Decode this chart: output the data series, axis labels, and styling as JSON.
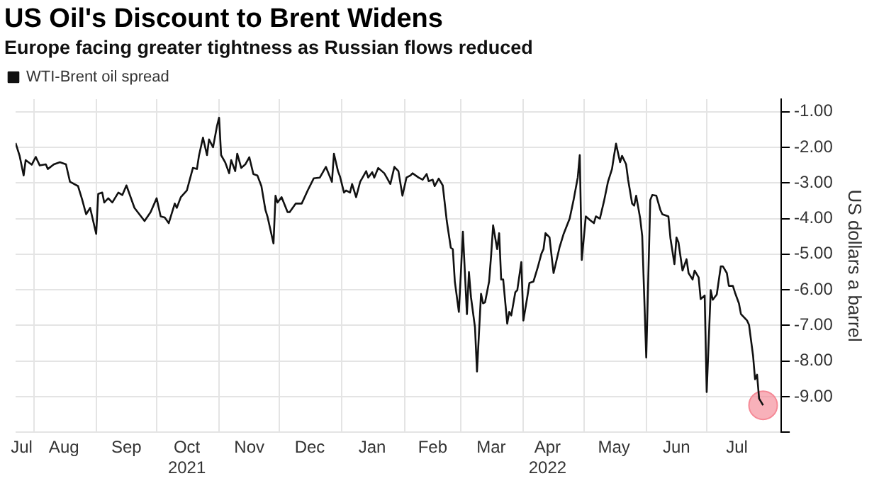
{
  "chart_data": {
    "type": "line",
    "title": "US Oil's Discount to Brent Widens",
    "subtitle": "Europe facing greater tightness as Russian flows reduced",
    "ylabel": "US dollars a barrel",
    "series": [
      {
        "name": "WTI-Brent oil spread",
        "color": "#111111",
        "x": [
          "2021-07-23",
          "2021-07-25",
          "2021-07-27",
          "2021-07-28",
          "2021-07-31",
          "2021-08-02",
          "2021-08-04",
          "2021-08-07",
          "2021-08-08",
          "2021-08-11",
          "2021-08-14",
          "2021-08-17",
          "2021-08-19",
          "2021-08-23",
          "2021-08-25",
          "2021-08-27",
          "2021-08-29",
          "2021-09-01",
          "2021-09-02",
          "2021-09-04",
          "2021-09-05",
          "2021-09-07",
          "2021-09-09",
          "2021-09-12",
          "2021-09-14",
          "2021-09-16",
          "2021-09-20",
          "2021-09-25",
          "2021-09-28",
          "2021-10-01",
          "2021-10-03",
          "2021-10-05",
          "2021-10-07",
          "2021-10-10",
          "2021-10-11",
          "2021-10-13",
          "2021-10-16",
          "2021-10-19",
          "2021-10-21",
          "2021-10-22",
          "2021-10-24",
          "2021-10-26",
          "2021-10-27",
          "2021-10-29",
          "2021-10-31",
          "2021-11-01",
          "2021-11-02",
          "2021-11-04",
          "2021-11-06",
          "2021-11-07",
          "2021-11-09",
          "2021-11-10",
          "2021-11-12",
          "2021-11-14",
          "2021-11-16",
          "2021-11-18",
          "2021-11-20",
          "2021-11-22",
          "2021-11-24",
          "2021-11-25",
          "2021-11-28",
          "2021-11-29",
          "2021-11-30",
          "2021-12-02",
          "2021-12-05",
          "2021-12-06",
          "2021-12-09",
          "2021-12-12",
          "2021-12-15",
          "2021-12-18",
          "2021-12-21",
          "2021-12-24",
          "2021-12-27",
          "2021-12-28",
          "2021-12-30",
          "2021-12-31",
          "2022-01-02",
          "2022-01-03",
          "2022-01-05",
          "2022-01-06",
          "2022-01-08",
          "2022-01-10",
          "2022-01-13",
          "2022-01-14",
          "2022-01-16",
          "2022-01-17",
          "2022-01-19",
          "2022-01-22",
          "2022-01-25",
          "2022-01-27",
          "2022-01-29",
          "2022-01-31",
          "2022-02-02",
          "2022-02-04",
          "2022-02-05",
          "2022-02-08",
          "2022-02-10",
          "2022-02-12",
          "2022-02-13",
          "2022-02-15",
          "2022-02-16",
          "2022-02-18",
          "2022-02-20",
          "2022-02-22",
          "2022-02-24",
          "2022-02-25",
          "2022-02-26",
          "2022-02-28",
          "2022-03-01",
          "2022-03-02",
          "2022-03-04",
          "2022-03-05",
          "2022-03-06",
          "2022-03-08",
          "2022-03-09",
          "2022-03-11",
          "2022-03-12",
          "2022-03-13",
          "2022-03-15",
          "2022-03-16",
          "2022-03-17",
          "2022-03-19",
          "2022-03-20",
          "2022-03-21",
          "2022-03-22",
          "2022-03-24",
          "2022-03-25",
          "2022-03-26",
          "2022-03-28",
          "2022-03-29",
          "2022-03-31",
          "2022-04-01",
          "2022-04-03",
          "2022-04-04",
          "2022-04-06",
          "2022-04-08",
          "2022-04-10",
          "2022-04-11",
          "2022-04-12",
          "2022-04-14",
          "2022-04-15",
          "2022-04-16",
          "2022-04-19",
          "2022-04-21",
          "2022-04-24",
          "2022-04-26",
          "2022-04-28",
          "2022-04-29",
          "2022-04-30",
          "2022-05-02",
          "2022-05-04",
          "2022-05-06",
          "2022-05-07",
          "2022-05-09",
          "2022-05-11",
          "2022-05-13",
          "2022-05-15",
          "2022-05-16",
          "2022-05-17",
          "2022-05-19",
          "2022-05-20",
          "2022-05-22",
          "2022-05-23",
          "2022-05-25",
          "2022-05-26",
          "2022-05-27",
          "2022-05-29",
          "2022-05-30",
          "2022-06-01",
          "2022-06-03",
          "2022-06-04",
          "2022-06-06",
          "2022-06-08",
          "2022-06-09",
          "2022-06-12",
          "2022-06-13",
          "2022-06-15",
          "2022-06-16",
          "2022-06-17",
          "2022-06-19",
          "2022-06-21",
          "2022-06-22",
          "2022-06-24",
          "2022-06-25",
          "2022-06-27",
          "2022-06-28",
          "2022-06-30",
          "2022-07-01",
          "2022-07-03",
          "2022-07-04",
          "2022-07-06",
          "2022-07-08",
          "2022-07-09",
          "2022-07-11",
          "2022-07-12",
          "2022-07-14",
          "2022-07-15",
          "2022-07-17",
          "2022-07-18",
          "2022-07-21",
          "2022-07-22",
          "2022-07-24",
          "2022-07-25",
          "2022-07-26",
          "2022-07-27",
          "2022-07-29"
        ],
        "values": [
          -1.88,
          -2.24,
          -2.79,
          -2.36,
          -2.49,
          -2.27,
          -2.51,
          -2.48,
          -2.61,
          -2.48,
          -2.42,
          -2.48,
          -2.97,
          -3.09,
          -3.46,
          -3.88,
          -3.7,
          -4.43,
          -3.31,
          -3.27,
          -3.55,
          -3.43,
          -3.55,
          -3.27,
          -3.34,
          -3.07,
          -3.7,
          -4.07,
          -3.82,
          -3.43,
          -3.94,
          -3.97,
          -4.13,
          -3.58,
          -3.7,
          -3.4,
          -3.21,
          -2.58,
          -2.61,
          -2.24,
          -1.73,
          -2.22,
          -1.78,
          -2.0,
          -1.39,
          -1.17,
          -2.22,
          -2.42,
          -2.73,
          -2.36,
          -2.67,
          -2.18,
          -2.58,
          -2.48,
          -2.28,
          -2.75,
          -2.79,
          -3.09,
          -3.76,
          -3.94,
          -4.7,
          -3.36,
          -3.55,
          -3.4,
          -3.82,
          -3.82,
          -3.58,
          -3.58,
          -3.21,
          -2.87,
          -2.85,
          -2.55,
          -2.97,
          -2.18,
          -2.67,
          -2.82,
          -3.27,
          -3.21,
          -3.27,
          -3.03,
          -3.4,
          -2.97,
          -2.67,
          -2.85,
          -2.7,
          -2.85,
          -2.58,
          -2.73,
          -3.03,
          -2.55,
          -2.67,
          -3.36,
          -2.85,
          -2.79,
          -2.73,
          -2.85,
          -2.91,
          -2.75,
          -2.95,
          -2.91,
          -3.09,
          -2.88,
          -3.07,
          -4.07,
          -4.82,
          -4.86,
          -5.77,
          -6.62,
          -5.53,
          -4.37,
          -6.68,
          -5.5,
          -6.2,
          -7.05,
          -8.29,
          -6.11,
          -6.38,
          -6.35,
          -5.77,
          -5.04,
          -4.19,
          -4.86,
          -4.41,
          -5.71,
          -5.71,
          -6.95,
          -6.62,
          -6.72,
          -6.07,
          -6.01,
          -5.22,
          -6.86,
          -6.19,
          -5.81,
          -5.77,
          -5.4,
          -4.98,
          -4.86,
          -4.41,
          -4.53,
          -5.04,
          -5.53,
          -4.8,
          -4.43,
          -4.0,
          -3.46,
          -2.85,
          -2.22,
          -5.16,
          -3.94,
          -4.04,
          -4.13,
          -3.94,
          -4.0,
          -3.52,
          -2.97,
          -2.61,
          -2.24,
          -1.9,
          -2.42,
          -2.24,
          -2.48,
          -2.91,
          -3.58,
          -3.64,
          -3.36,
          -4.0,
          -4.49,
          -7.9,
          -3.48,
          -3.34,
          -3.36,
          -3.76,
          -3.88,
          -3.94,
          -4.55,
          -5.28,
          -4.53,
          -4.67,
          -5.46,
          -5.14,
          -5.53,
          -5.71,
          -5.46,
          -5.65,
          -6.26,
          -6.16,
          -8.87,
          -6.01,
          -6.28,
          -6.13,
          -5.34,
          -5.34,
          -5.53,
          -5.89,
          -5.89,
          -6.07,
          -6.38,
          -6.68,
          -6.86,
          -6.98,
          -7.84,
          -8.51,
          -8.38,
          -9.05,
          -9.24
        ]
      },
      {
        "type": "scatter",
        "color": "#f58a97",
        "x": [
          "2022-07-29"
        ],
        "values": [
          -9.24
        ]
      }
    ],
    "xlim": [
      "2021-07-23",
      "2022-08-07"
    ],
    "xticks": [
      {
        "value": "2021-07-26",
        "label": "Jul"
      },
      {
        "value": "2021-08-01",
        "label": null
      },
      {
        "value": "2021-08-16",
        "label": "Aug"
      },
      {
        "value": "2021-09-01",
        "label": null
      },
      {
        "value": "2021-09-16",
        "label": "Sep"
      },
      {
        "value": "2021-10-01",
        "label": null
      },
      {
        "value": "2021-10-16",
        "label": "Oct\n2021"
      },
      {
        "value": "2021-11-01",
        "label": null
      },
      {
        "value": "2021-11-16",
        "label": "Nov"
      },
      {
        "value": "2021-12-01",
        "label": null
      },
      {
        "value": "2021-12-16",
        "label": "Dec"
      },
      {
        "value": "2022-01-01",
        "label": null
      },
      {
        "value": "2022-01-16",
        "label": "Jan"
      },
      {
        "value": "2022-02-01",
        "label": null
      },
      {
        "value": "2022-02-15",
        "label": "Feb"
      },
      {
        "value": "2022-03-01",
        "label": null
      },
      {
        "value": "2022-03-16",
        "label": "Mar"
      },
      {
        "value": "2022-04-01",
        "label": null
      },
      {
        "value": "2022-04-13",
        "label": "Apr\n2022"
      },
      {
        "value": "2022-05-01",
        "label": null
      },
      {
        "value": "2022-05-16",
        "label": "May"
      },
      {
        "value": "2022-06-01",
        "label": null
      },
      {
        "value": "2022-06-16",
        "label": "Jun"
      },
      {
        "value": "2022-07-01",
        "label": null
      },
      {
        "value": "2022-07-16",
        "label": "Jul"
      }
    ],
    "ylim": [
      -10,
      -0.65
    ],
    "yticks": [
      {
        "value": -10,
        "label": null
      },
      {
        "value": -9,
        "label": "-9.00"
      },
      {
        "value": -8,
        "label": "-8.00"
      },
      {
        "value": -7,
        "label": "-7.00"
      },
      {
        "value": -6,
        "label": "-6.00"
      },
      {
        "value": -5,
        "label": "-5.00"
      },
      {
        "value": -4,
        "label": "-4.00"
      },
      {
        "value": -3,
        "label": "-3.00"
      },
      {
        "value": -2,
        "label": "-2.00"
      },
      {
        "value": -1,
        "label": "-1.00"
      }
    ],
    "grid": true,
    "legend": "top left"
  }
}
